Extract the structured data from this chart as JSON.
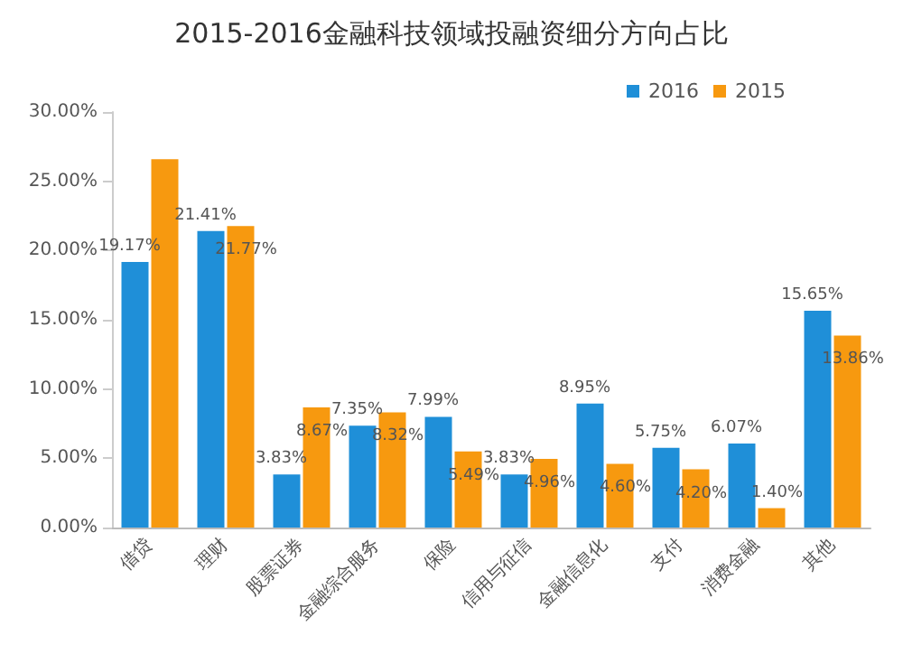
{
  "chart_data": {
    "type": "bar",
    "title": "2015-2016金融科技领域投融资细分方向占比",
    "categories": [
      "借贷",
      "理财",
      "股票证券",
      "金融综合服务",
      "保险",
      "信用与征信",
      "金融信息化",
      "支付",
      "消费金融",
      "其他"
    ],
    "series": [
      {
        "name": "2016",
        "color": "#1f8fd8",
        "values": [
          19.17,
          21.41,
          3.83,
          7.35,
          7.99,
          3.83,
          8.95,
          5.75,
          6.07,
          15.65
        ],
        "value_labels": [
          "19.17%",
          "21.41%",
          "3.83%",
          "7.35%",
          "7.99%",
          "3.83%",
          "8.95%",
          "5.75%",
          "6.07%",
          "15.65%"
        ]
      },
      {
        "name": "2015",
        "color": "#f7990f",
        "values": [
          26.6,
          21.77,
          8.67,
          8.32,
          5.49,
          4.96,
          4.6,
          4.2,
          1.4,
          13.86
        ],
        "value_labels": [
          null,
          "21.77%",
          "8.67%",
          "8.32%",
          "5.49%",
          "4.96%",
          "4.60%",
          "4.20%",
          "1.40%",
          "13.86%"
        ]
      }
    ],
    "ylim": [
      0,
      30
    ],
    "yticks": [
      {
        "value": 0,
        "label": "0.00%"
      },
      {
        "value": 5,
        "label": "5.00%"
      },
      {
        "value": 10,
        "label": "10.00%"
      },
      {
        "value": 15,
        "label": "15.00%"
      },
      {
        "value": 20,
        "label": "20.00%"
      },
      {
        "value": 25,
        "label": "25.00%"
      },
      {
        "value": 30,
        "label": "30.00%"
      }
    ],
    "grid": false,
    "legend": "top right"
  }
}
